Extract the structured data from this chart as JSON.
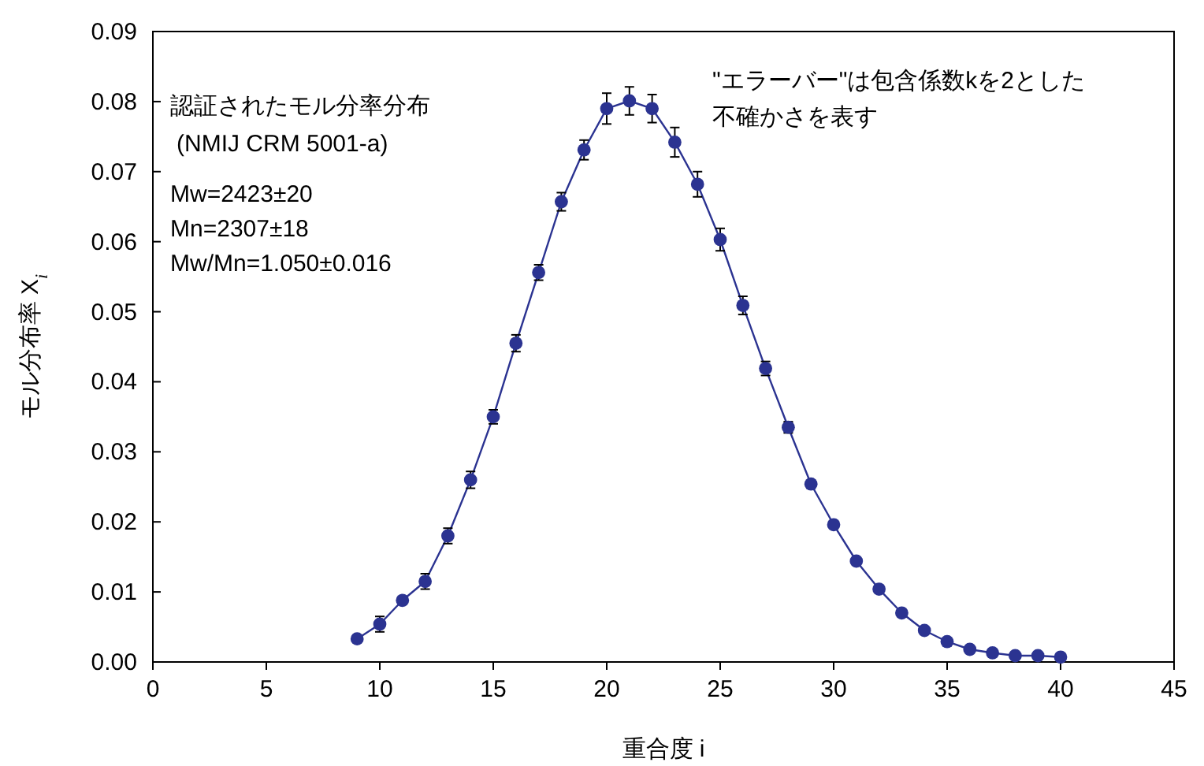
{
  "chart_data": {
    "type": "line",
    "xlabel": "重合度 i",
    "ylabel": "モル分布率 X$_{i}$",
    "annotations": [
      "認証されたモル分率分布",
      "(NMIJ CRM 5001-a)",
      "Mw=2423±20",
      "Mn=2307±18",
      "Mw/Mn=1.050±0.016",
      "\"エラーバー\"は包含係数kを2とした",
      "不確かさを表す"
    ],
    "x": [
      9,
      10,
      11,
      12,
      13,
      14,
      15,
      16,
      17,
      18,
      19,
      20,
      21,
      22,
      23,
      24,
      25,
      26,
      27,
      28,
      29,
      30,
      31,
      32,
      33,
      34,
      35,
      36,
      37,
      38,
      39,
      40
    ],
    "series": [
      {
        "color": "#2b3391",
        "values": [
          0.0033,
          0.0054,
          0.0088,
          0.0115,
          0.018,
          0.026,
          0.035,
          0.0455,
          0.0556,
          0.0657,
          0.0731,
          0.079,
          0.0801,
          0.079,
          0.0742,
          0.0682,
          0.0603,
          0.0509,
          0.0419,
          0.0335,
          0.0254,
          0.0196,
          0.0144,
          0.0104,
          0.007,
          0.0045,
          0.0029,
          0.0018,
          0.0013,
          0.0009,
          0.0009,
          0.0007
        ],
        "errors": [
          null,
          0.0011,
          null,
          0.0011,
          0.0011,
          0.0012,
          0.001,
          0.0012,
          0.0011,
          0.0013,
          0.0014,
          0.0022,
          0.002,
          0.002,
          0.0021,
          0.0018,
          0.0016,
          0.0013,
          0.001,
          0.0008,
          null,
          null,
          null,
          null,
          null,
          null,
          null,
          null,
          null,
          null,
          null,
          null
        ]
      }
    ],
    "xlim": [
      0,
      45
    ],
    "xticks": [
      0,
      5,
      10,
      15,
      20,
      25,
      30,
      35,
      40,
      45
    ],
    "ylim": [
      0,
      0.09
    ],
    "yticks": [
      {
        "value": 0,
        "label": "0.00"
      },
      {
        "value": 0.01,
        "label": "0.01"
      },
      {
        "value": 0.02,
        "label": "0.02"
      },
      {
        "value": 0.03,
        "label": "0.03"
      },
      {
        "value": 0.04,
        "label": "0.04"
      },
      {
        "value": 0.05,
        "label": "0.05"
      },
      {
        "value": 0.06,
        "label": "0.06"
      },
      {
        "value": 0.07,
        "label": "0.07"
      },
      {
        "value": 0.08,
        "label": "0.08"
      },
      {
        "value": 0.09,
        "label": "0.09"
      }
    ],
    "marker": "circle",
    "line_style": "solid",
    "grid": false
  }
}
